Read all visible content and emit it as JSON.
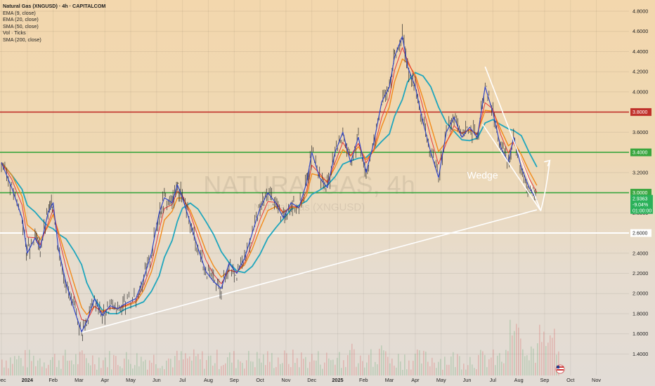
{
  "chart_data": {
    "type": "line",
    "title": "Natural Gas (XNGUSD) · 4h · CAPITALCOM",
    "indicators": [
      "EMA (9, close)",
      "EMA (20, close)",
      "SMA (50, close)",
      "Vol · Ticks",
      "SMA (200, close)"
    ],
    "watermark": {
      "symbol": "NATURALGAS, 4h",
      "name": "Natural Gas (XNGUSD)"
    },
    "x_ticks": [
      "Dec",
      "2024",
      "Feb",
      "Mar",
      "Apr",
      "May",
      "Jun",
      "Jul",
      "Aug",
      "Sep",
      "Oct",
      "Nov",
      "Dec",
      "2025",
      "Feb",
      "Mar",
      "Apr",
      "May",
      "Jun",
      "Jul",
      "Aug",
      "Sep",
      "Oct",
      "Nov"
    ],
    "y_ticks": [
      "4.8000",
      "4.6000",
      "4.4000",
      "4.2000",
      "4.0000",
      "3.8000",
      "3.6000",
      "3.4000",
      "3.2000",
      "3.0000",
      "2.8000",
      "2.6000",
      "2.4000",
      "2.2000",
      "2.0000",
      "1.8000",
      "1.6000",
      "1.4000"
    ],
    "ylim": [
      1.24,
      4.85
    ],
    "x_range": [
      0,
      23.8
    ],
    "price_points": [
      [
        0,
        3.3
      ],
      [
        0.4,
        3.05
      ],
      [
        0.8,
        2.75
      ],
      [
        1.0,
        2.4
      ],
      [
        1.3,
        2.55
      ],
      [
        1.5,
        2.45
      ],
      [
        1.8,
        2.8
      ],
      [
        2.0,
        2.9
      ],
      [
        2.2,
        2.45
      ],
      [
        2.5,
        2.1
      ],
      [
        2.8,
        1.85
      ],
      [
        3.1,
        1.62
      ],
      [
        3.3,
        1.72
      ],
      [
        3.6,
        1.95
      ],
      [
        3.9,
        1.78
      ],
      [
        4.2,
        1.88
      ],
      [
        4.5,
        1.85
      ],
      [
        4.8,
        1.9
      ],
      [
        5.2,
        1.95
      ],
      [
        5.5,
        2.15
      ],
      [
        5.8,
        2.4
      ],
      [
        6.1,
        2.8
      ],
      [
        6.3,
        2.95
      ],
      [
        6.6,
        2.9
      ],
      [
        6.8,
        3.08
      ],
      [
        7.0,
        2.95
      ],
      [
        7.3,
        2.7
      ],
      [
        7.6,
        2.45
      ],
      [
        7.9,
        2.22
      ],
      [
        8.2,
        2.12
      ],
      [
        8.5,
        2.05
      ],
      [
        8.8,
        2.3
      ],
      [
        9.1,
        2.2
      ],
      [
        9.4,
        2.35
      ],
      [
        9.7,
        2.6
      ],
      [
        10.0,
        2.85
      ],
      [
        10.3,
        3.0
      ],
      [
        10.6,
        2.9
      ],
      [
        10.9,
        2.75
      ],
      [
        11.2,
        2.9
      ],
      [
        11.5,
        2.85
      ],
      [
        11.8,
        3.1
      ],
      [
        12.0,
        3.4
      ],
      [
        12.3,
        3.15
      ],
      [
        12.6,
        3.05
      ],
      [
        12.9,
        3.4
      ],
      [
        13.2,
        3.6
      ],
      [
        13.5,
        3.3
      ],
      [
        13.8,
        3.55
      ],
      [
        14.1,
        3.2
      ],
      [
        14.4,
        3.5
      ],
      [
        14.7,
        3.9
      ],
      [
        15.0,
        4.05
      ],
      [
        15.2,
        4.35
      ],
      [
        15.5,
        4.55
      ],
      [
        15.7,
        4.25
      ],
      [
        16.0,
        4.05
      ],
      [
        16.3,
        3.7
      ],
      [
        16.6,
        3.4
      ],
      [
        16.9,
        3.15
      ],
      [
        17.2,
        3.6
      ],
      [
        17.5,
        3.75
      ],
      [
        17.8,
        3.55
      ],
      [
        18.1,
        3.65
      ],
      [
        18.4,
        3.55
      ],
      [
        18.7,
        4.05
      ],
      [
        19.0,
        3.8
      ],
      [
        19.3,
        3.45
      ],
      [
        19.6,
        3.3
      ],
      [
        19.8,
        3.55
      ],
      [
        20.1,
        3.25
      ],
      [
        20.4,
        3.05
      ],
      [
        20.7,
        2.93
      ]
    ],
    "series_colors": {
      "price": "#3247c8",
      "ema9": "#e63a3a",
      "ema20": "#f28a1a",
      "sma50": "#1fa6bd",
      "sma200": "#e0e0e0",
      "volume": "#d65a5a"
    },
    "horizontal_levels": [
      {
        "price": 3.8,
        "label": "3.8000",
        "color": "#c0302a"
      },
      {
        "price": 3.4,
        "label": "3.4000",
        "color": "#3aa63f"
      },
      {
        "price": 3.0,
        "label": "3.0000",
        "color": "#3aa63f"
      },
      {
        "price": 2.6,
        "label": "2.6000",
        "color": "#ffffff"
      }
    ],
    "last_price": {
      "value": 2.9363,
      "label": "2.9363",
      "change": "-9.04%",
      "countdown": "01:00:00",
      "color": "#2bb15a"
    },
    "annotations": [
      {
        "type": "text",
        "text": "Wedge",
        "x": 18.0,
        "y": 3.14
      },
      {
        "type": "trendline",
        "from": [
          3.07,
          1.61
        ],
        "to": [
          20.7,
          2.83
        ]
      },
      {
        "type": "wedge_upper",
        "from": [
          18.7,
          4.25
        ],
        "to": [
          20.85,
          2.82
        ]
      },
      {
        "type": "wedge_lower",
        "from": [
          18.6,
          3.68
        ],
        "to": [
          20.85,
          2.82
        ]
      },
      {
        "type": "arrow",
        "points": [
          [
            20.85,
            2.82
          ],
          [
            21.2,
            3.32
          ]
        ]
      }
    ]
  }
}
